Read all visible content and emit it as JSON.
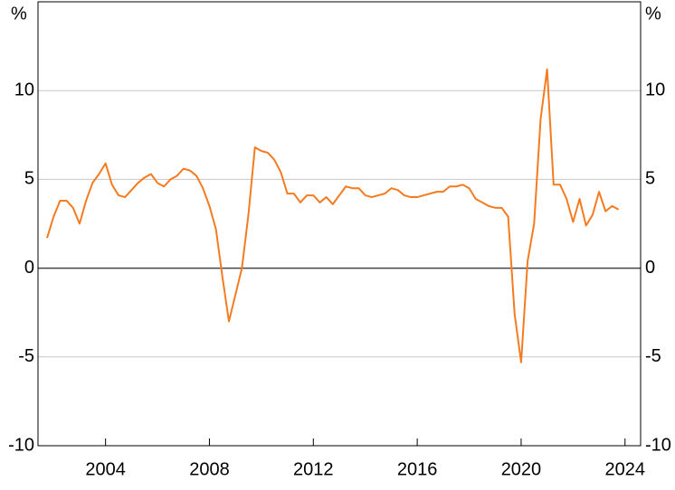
{
  "chart_data": {
    "type": "line",
    "y_label": "%",
    "y2_label": "%",
    "x": [
      2001.75,
      2002.0,
      2002.25,
      2002.5,
      2002.75,
      2003.0,
      2003.25,
      2003.5,
      2003.75,
      2004.0,
      2004.25,
      2004.5,
      2004.75,
      2005.0,
      2005.25,
      2005.5,
      2005.75,
      2006.0,
      2006.25,
      2006.5,
      2006.75,
      2007.0,
      2007.25,
      2007.5,
      2007.75,
      2008.0,
      2008.25,
      2008.5,
      2008.75,
      2009.0,
      2009.25,
      2009.5,
      2009.75,
      2010.0,
      2010.25,
      2010.5,
      2010.75,
      2011.0,
      2011.25,
      2011.5,
      2011.75,
      2012.0,
      2012.25,
      2012.5,
      2012.75,
      2013.0,
      2013.25,
      2013.5,
      2013.75,
      2014.0,
      2014.25,
      2014.5,
      2014.75,
      2015.0,
      2015.25,
      2015.5,
      2015.75,
      2016.0,
      2016.25,
      2016.5,
      2016.75,
      2017.0,
      2017.25,
      2017.5,
      2017.75,
      2018.0,
      2018.25,
      2018.5,
      2018.75,
      2019.0,
      2019.25,
      2019.5,
      2019.75,
      2020.0,
      2020.25,
      2020.5,
      2020.75,
      2021.0,
      2021.25,
      2021.5,
      2021.75,
      2022.0,
      2022.25,
      2022.5,
      2022.75,
      2023.0,
      2023.25,
      2023.5,
      2023.75
    ],
    "series": [
      {
        "color": "#f47b20",
        "values": [
          1.7,
          2.9,
          3.8,
          3.8,
          3.4,
          2.5,
          3.8,
          4.8,
          5.3,
          5.9,
          4.7,
          4.1,
          4.0,
          4.4,
          4.8,
          5.1,
          5.3,
          4.8,
          4.6,
          5.0,
          5.2,
          5.6,
          5.5,
          5.2,
          4.5,
          3.5,
          2.2,
          -0.5,
          -3.0,
          -1.5,
          0.0,
          3.0,
          6.8,
          6.6,
          6.5,
          6.1,
          5.4,
          4.2,
          4.2,
          3.7,
          4.1,
          4.1,
          3.7,
          4.0,
          3.6,
          4.1,
          4.6,
          4.5,
          4.5,
          4.1,
          4.0,
          4.1,
          4.2,
          4.5,
          4.4,
          4.1,
          4.0,
          4.0,
          4.1,
          4.2,
          4.3,
          4.3,
          4.6,
          4.6,
          4.7,
          4.5,
          3.9,
          3.7,
          3.5,
          3.4,
          3.4,
          2.9,
          -2.6,
          -5.3,
          0.4,
          2.5,
          8.4,
          11.2,
          4.7,
          4.7,
          3.9,
          2.6,
          3.9,
          2.4,
          3.0,
          4.3,
          3.2,
          3.5,
          3.3
        ]
      }
    ],
    "xlim": [
      2001.4,
      2024.6
    ],
    "xticks": [
      2004,
      2008,
      2012,
      2016,
      2020,
      2024
    ],
    "ylim": [
      -10,
      15
    ],
    "yticks": [
      -10,
      -5,
      0,
      5,
      10
    ],
    "y2lim": [
      -10,
      15
    ],
    "y2ticks": [
      -10,
      -5,
      0,
      5,
      10
    ],
    "grid": true
  }
}
